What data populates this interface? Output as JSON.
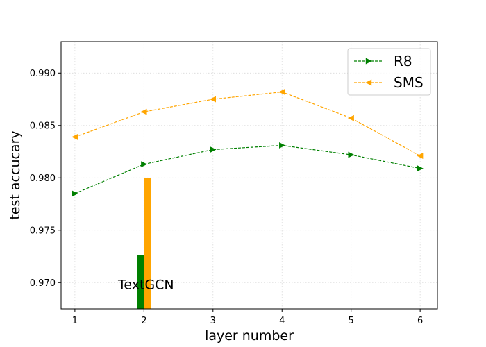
{
  "chart_data": {
    "type": "line",
    "xlabel": "layer number",
    "ylabel": "test accucary",
    "x": [
      1,
      2,
      3,
      4,
      5,
      6
    ],
    "xlim": [
      0.8,
      6.25
    ],
    "ylim": [
      0.9675,
      0.993
    ],
    "x_ticks": [
      1,
      2,
      3,
      4,
      5,
      6
    ],
    "y_ticks": [
      0.97,
      0.975,
      0.98,
      0.985,
      0.99
    ],
    "y_tick_labels": [
      "0.970",
      "0.975",
      "0.980",
      "0.985",
      "0.990"
    ],
    "grid": true,
    "legend_position": "upper right",
    "series": [
      {
        "name": "R8",
        "color": "#008000",
        "marker": "triangle-right",
        "linestyle": "dashed",
        "values": [
          0.9785,
          0.9813,
          0.9827,
          0.9831,
          0.9822,
          0.9809
        ]
      },
      {
        "name": "SMS",
        "color": "#FFA500",
        "marker": "triangle-left",
        "linestyle": "dashed",
        "values": [
          0.9839,
          0.9863,
          0.9875,
          0.9882,
          0.9857,
          0.9821
        ]
      }
    ],
    "baseline_bars": {
      "label": "TextGCN",
      "x": 2,
      "bars": [
        {
          "series": "R8",
          "value": 0.9726,
          "color": "#008000"
        },
        {
          "series": "SMS",
          "value": 0.98,
          "color": "#FFA500"
        }
      ]
    }
  }
}
